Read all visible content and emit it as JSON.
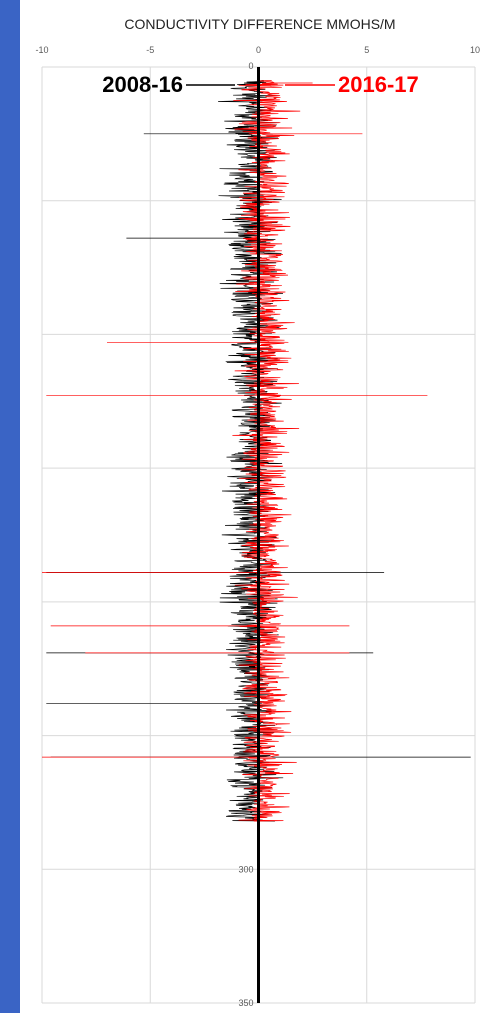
{
  "theme": {
    "left_bar_color": "#3a64c5",
    "grid_color": "#d9d9d9",
    "axis_color": "#000000",
    "series_colors": [
      "#000000",
      "#ff0000"
    ]
  },
  "chart_data": {
    "type": "line",
    "title": "CONDUCTIVITY DIFFERENCE MMOHS/M",
    "orientation": "vertical-depth",
    "xlim": [
      -10,
      10
    ],
    "ylim": [
      0,
      350
    ],
    "y_inverted": true,
    "x_ticks": [
      "-10",
      "-5",
      "0",
      "5",
      "10"
    ],
    "y_ticks": [
      "0",
      "300",
      "350"
    ],
    "grid": true,
    "legend_position": "top",
    "series": [
      {
        "name": "2008-16"
      },
      {
        "name": "2016-17"
      }
    ],
    "trace_depth_range": [
      5,
      282
    ],
    "black_spikes": [
      {
        "depth": 25,
        "value": -5.3
      },
      {
        "depth": 64,
        "value": -6.1
      },
      {
        "depth": 189,
        "value": -9.8
      },
      {
        "depth": 189,
        "value": 5.8
      },
      {
        "depth": 219,
        "value": -9.8
      },
      {
        "depth": 219,
        "value": 5.3
      },
      {
        "depth": 238,
        "value": -9.8
      },
      {
        "depth": 258,
        "value": 9.8
      },
      {
        "depth": 258,
        "value": -9.6
      }
    ],
    "red_spikes": [
      {
        "depth": 6,
        "value": 2.5
      },
      {
        "depth": 25,
        "value": 4.8
      },
      {
        "depth": 103,
        "value": -7.0
      },
      {
        "depth": 123,
        "value": -9.8
      },
      {
        "depth": 123,
        "value": 7.8
      },
      {
        "depth": 189,
        "value": -10.0
      },
      {
        "depth": 209,
        "value": -9.6
      },
      {
        "depth": 209,
        "value": 4.2
      },
      {
        "depth": 219,
        "value": -8.0
      },
      {
        "depth": 219,
        "value": 4.2
      },
      {
        "depth": 258,
        "value": -10.0
      }
    ]
  }
}
